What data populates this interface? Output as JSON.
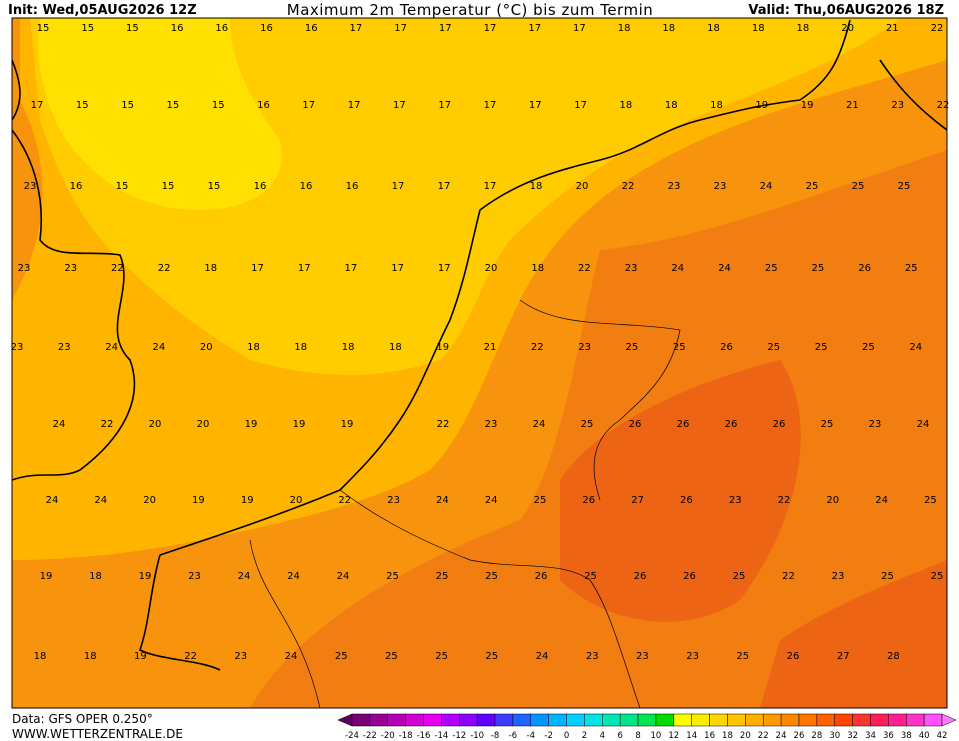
{
  "header": {
    "init": "Init: Wed,05AUG2026 12Z",
    "title": "Maximum 2m Temperatur (°C) bis zum Termin",
    "valid": "Valid: Thu,06AUG2026 18Z"
  },
  "map": {
    "rows": [
      [
        15,
        15,
        15,
        16,
        16,
        16,
        16,
        17,
        17,
        17,
        17,
        17,
        17,
        18,
        18,
        18,
        18,
        18,
        20,
        21,
        22
      ],
      [
        17,
        15,
        15,
        15,
        15,
        16,
        17,
        17,
        17,
        17,
        17,
        17,
        17,
        18,
        18,
        18,
        19,
        19,
        21,
        23,
        22
      ],
      [
        23,
        16,
        15,
        15,
        15,
        16,
        16,
        16,
        17,
        17,
        17,
        18,
        20,
        22,
        23,
        23,
        24,
        25,
        25,
        25
      ],
      [
        23,
        23,
        22,
        22,
        18,
        17,
        17,
        17,
        17,
        17,
        20,
        18,
        22,
        23,
        24,
        24,
        25,
        25,
        26,
        25
      ],
      [
        23,
        23,
        24,
        24,
        20,
        18,
        18,
        18,
        18,
        19,
        21,
        22,
        23,
        25,
        25,
        26,
        25,
        25,
        25,
        24
      ],
      [
        24,
        22,
        20,
        20,
        19,
        19,
        19,
        null,
        22,
        23,
        24,
        25,
        26,
        26,
        26,
        26,
        25,
        23,
        24
      ],
      [
        24,
        24,
        20,
        19,
        19,
        20,
        22,
        23,
        24,
        24,
        25,
        26,
        27,
        26,
        23,
        22,
        20,
        24,
        25
      ],
      [
        19,
        18,
        19,
        23,
        24,
        24,
        24,
        25,
        25,
        25,
        26,
        25,
        26,
        26,
        25,
        22,
        23,
        25,
        25
      ],
      [
        18,
        18,
        19,
        22,
        23,
        24,
        25,
        25,
        25,
        25,
        24,
        23,
        23,
        23,
        25,
        26,
        27,
        28
      ]
    ]
  },
  "footer": {
    "source": "Data: GFS OPER 0.250°",
    "site": "WWW.WETTERZENTRALE.DE"
  },
  "scale": {
    "ticks": [
      -24,
      -22,
      -20,
      -18,
      -16,
      -14,
      -12,
      -10,
      -8,
      -6,
      -4,
      -2,
      0,
      2,
      4,
      6,
      8,
      10,
      12,
      14,
      16,
      18,
      20,
      22,
      24,
      26,
      28,
      30,
      32,
      34,
      36,
      38,
      40,
      42
    ],
    "colors": [
      "#5a005a",
      "#780078",
      "#960096",
      "#b400b4",
      "#d200d2",
      "#e600f0",
      "#b400ff",
      "#8c00ff",
      "#6400ff",
      "#3c3cff",
      "#1e64ff",
      "#0096ff",
      "#00b4ff",
      "#00d2ff",
      "#00e6e6",
      "#00e6b4",
      "#00e68c",
      "#00e650",
      "#00dc00",
      "#ffff00",
      "#ffeb00",
      "#ffd700",
      "#ffc300",
      "#ffaf00",
      "#ff9b00",
      "#ff8700",
      "#ff7300",
      "#ff5f00",
      "#ff4600",
      "#ff3232",
      "#ff1e5a",
      "#ff1e8c",
      "#ff32c8",
      "#ff50ff",
      "#ff78ff"
    ]
  }
}
